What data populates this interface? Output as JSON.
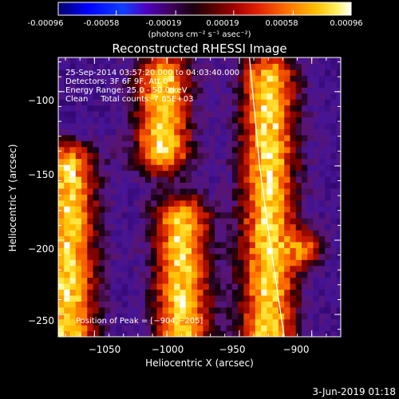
{
  "chart_data": {
    "type": "heatmap",
    "title": "Reconstructed RHESSI Image",
    "colorbar": {
      "ticks": [
        "-0.00096",
        "-0.00058",
        "-0.00019",
        "0.00019",
        "0.00058",
        "0.00096"
      ],
      "label": "(photons cm⁻² s⁻¹ asec⁻²)",
      "range": [
        -0.00096,
        0.00096
      ]
    },
    "xlabel": "Heliocentric X (arcsec)",
    "ylabel": "Heliocentric Y (arcsec)",
    "x_ticks": [
      -1050,
      -1000,
      -950,
      -900
    ],
    "x_tick_labels": [
      "−1050",
      "−1000",
      "−950",
      "−900"
    ],
    "y_ticks": [
      -100,
      -150,
      -200,
      -250
    ],
    "y_tick_labels": [
      "−100",
      "−150",
      "−200",
      "−250"
    ],
    "xlim": [
      -1075,
      -880
    ],
    "ylim": [
      -265,
      -77
    ],
    "annotations": [
      "25-Sep-2014 03:57:20.000 to 04:03:40.000",
      "Detectors: 3F 6F 9F, Att 0",
      "Energy Range: 25.0 - 50.0 keV",
      "Clean     Total counts: 7.85E+03"
    ],
    "peak_text": "Position of Peak = [−904,−205]",
    "peak": [
      -904,
      -205
    ],
    "limb_curve": [
      [
        -943,
        -77
      ],
      [
        -936,
        -150
      ],
      [
        -929,
        -200
      ],
      [
        -919,
        -265
      ]
    ],
    "bright_ridges": [
      {
        "x": -1068,
        "y_range": [
          -150,
          -265
        ]
      },
      {
        "x": -1003,
        "y_range": [
          -90,
          -140
        ]
      },
      {
        "x": -990,
        "y_range": [
          -185,
          -265
        ]
      },
      {
        "x": -930,
        "y_range": [
          -90,
          -265
        ]
      }
    ]
  },
  "footer": {
    "timestamp": "3-Jun-2019 01:18"
  },
  "colors": {
    "background": "#000000",
    "text": "#ffffff",
    "limb": "#ffffff"
  }
}
